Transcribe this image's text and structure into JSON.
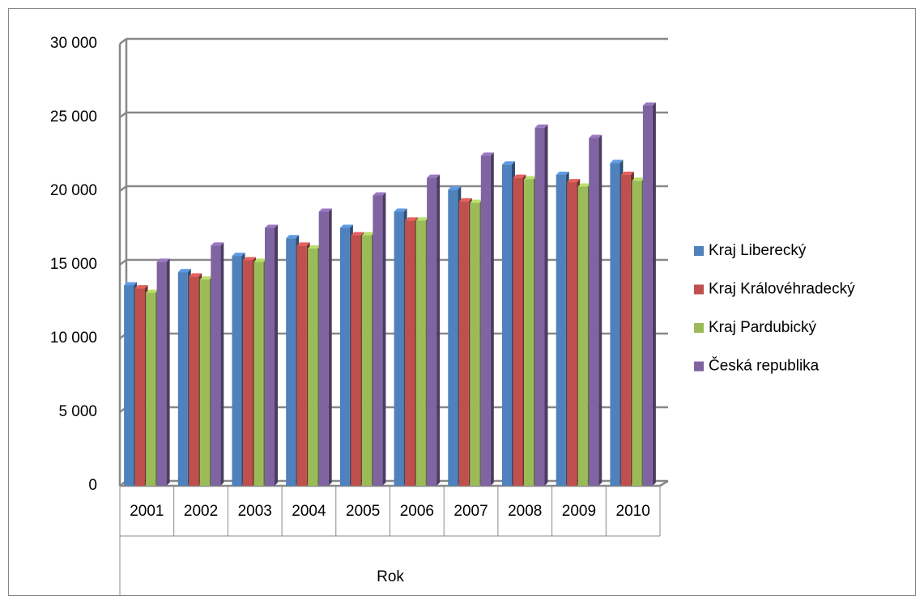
{
  "chart_data": {
    "type": "bar3d",
    "x_label": "Rok",
    "categories": [
      "2001",
      "2002",
      "2003",
      "2004",
      "2005",
      "2006",
      "2007",
      "2008",
      "2009",
      "2010"
    ],
    "series": [
      {
        "name": "Kraj Liberecký",
        "color": "#4f81bd",
        "values": [
          13600,
          14500,
          15600,
          16800,
          17500,
          18600,
          20100,
          21800,
          21100,
          21900
        ]
      },
      {
        "name": "Kraj Královéhradecký",
        "color": "#c0504d",
        "values": [
          13400,
          14200,
          15300,
          16300,
          17000,
          18000,
          19300,
          20900,
          20600,
          21100
        ]
      },
      {
        "name": "Kraj Pardubický",
        "color": "#9bbb59",
        "values": [
          13100,
          14000,
          15200,
          16100,
          17000,
          18000,
          19200,
          20800,
          20300,
          20700
        ]
      },
      {
        "name": "Česká republika",
        "color": "#8064a2",
        "values": [
          15200,
          16300,
          17500,
          18600,
          19700,
          20900,
          22400,
          24300,
          23600,
          25800
        ]
      }
    ],
    "ylim": [
      0,
      30000
    ],
    "yticks": [
      {
        "value": 0,
        "label": "0"
      },
      {
        "value": 5000,
        "label": "5 000"
      },
      {
        "value": 10000,
        "label": "10 000"
      },
      {
        "value": 15000,
        "label": "15 000"
      },
      {
        "value": 20000,
        "label": "20 000"
      },
      {
        "value": 25000,
        "label": "25 000"
      },
      {
        "value": 30000,
        "label": "30 000"
      }
    ],
    "grid": true,
    "legend": "right"
  }
}
